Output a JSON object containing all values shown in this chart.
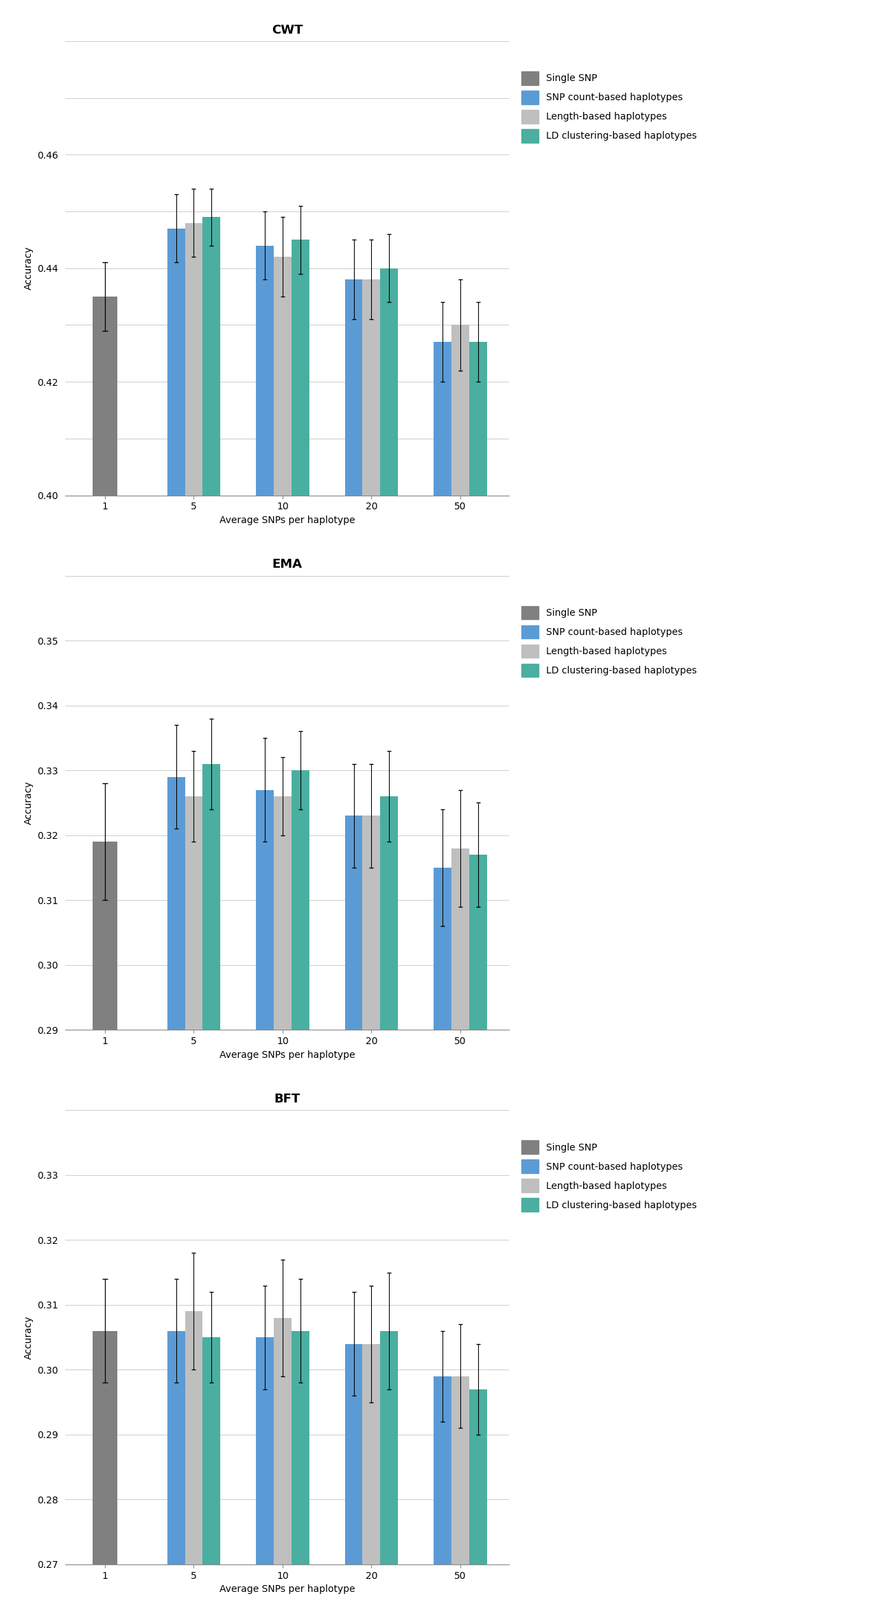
{
  "charts": [
    {
      "title": "CWT",
      "ylim": [
        0.4,
        0.48
      ],
      "yticks": [
        0.4,
        0.41,
        0.42,
        0.43,
        0.44,
        0.45,
        0.46,
        0.47,
        0.48
      ],
      "ytick_labels": [
        "0.40",
        "",
        "0.42",
        "",
        "0.44",
        "",
        "0.46",
        "",
        ""
      ],
      "values": {
        "single_snp": [
          0.435,
          null,
          null,
          null,
          null
        ],
        "snp_count": [
          null,
          0.447,
          0.444,
          0.438,
          0.427
        ],
        "length": [
          null,
          0.448,
          0.442,
          0.438,
          0.43
        ],
        "ld_cluster": [
          null,
          0.449,
          0.445,
          0.44,
          0.427
        ]
      },
      "errors": {
        "single_snp": [
          0.006,
          null,
          null,
          null,
          null
        ],
        "snp_count": [
          null,
          0.006,
          0.006,
          0.007,
          0.007
        ],
        "length": [
          null,
          0.006,
          0.007,
          0.007,
          0.008
        ],
        "ld_cluster": [
          null,
          0.005,
          0.006,
          0.006,
          0.007
        ]
      }
    },
    {
      "title": "EMA",
      "ylim": [
        0.29,
        0.36
      ],
      "yticks": [
        0.29,
        0.3,
        0.31,
        0.32,
        0.33,
        0.34,
        0.35,
        0.36
      ],
      "ytick_labels": [
        "0.29",
        "0.30",
        "0.31",
        "0.32",
        "0.33",
        "0.34",
        "0.35",
        ""
      ],
      "values": {
        "single_snp": [
          0.319,
          null,
          null,
          null,
          null
        ],
        "snp_count": [
          null,
          0.329,
          0.327,
          0.323,
          0.315
        ],
        "length": [
          null,
          0.326,
          0.326,
          0.323,
          0.318
        ],
        "ld_cluster": [
          null,
          0.331,
          0.33,
          0.326,
          0.317
        ]
      },
      "errors": {
        "single_snp": [
          0.009,
          null,
          null,
          null,
          null
        ],
        "snp_count": [
          null,
          0.008,
          0.008,
          0.008,
          0.009
        ],
        "length": [
          null,
          0.007,
          0.006,
          0.008,
          0.009
        ],
        "ld_cluster": [
          null,
          0.007,
          0.006,
          0.007,
          0.008
        ]
      }
    },
    {
      "title": "BFT",
      "ylim": [
        0.27,
        0.34
      ],
      "yticks": [
        0.27,
        0.28,
        0.29,
        0.3,
        0.31,
        0.32,
        0.33,
        0.34
      ],
      "ytick_labels": [
        "0.27",
        "0.28",
        "0.29",
        "0.30",
        "0.31",
        "0.32",
        "0.33",
        ""
      ],
      "values": {
        "single_snp": [
          0.306,
          null,
          null,
          null,
          null
        ],
        "snp_count": [
          null,
          0.306,
          0.305,
          0.304,
          0.299
        ],
        "length": [
          null,
          0.309,
          0.308,
          0.304,
          0.299
        ],
        "ld_cluster": [
          null,
          0.305,
          0.306,
          0.306,
          0.297
        ]
      },
      "errors": {
        "single_snp": [
          0.008,
          null,
          null,
          null,
          null
        ],
        "snp_count": [
          null,
          0.008,
          0.008,
          0.008,
          0.007
        ],
        "length": [
          null,
          0.009,
          0.009,
          0.009,
          0.008
        ],
        "ld_cluster": [
          null,
          0.007,
          0.008,
          0.009,
          0.007
        ]
      }
    }
  ],
  "colors": {
    "single_snp": "#808080",
    "snp_count": "#5B9BD5",
    "length": "#BFBFBF",
    "ld_cluster": "#4AAFA0"
  },
  "legend_labels": [
    "Single SNP",
    "SNP count-based haplotypes",
    "Length-based haplotypes",
    "LD clustering-based haplotypes"
  ],
  "legend_keys": [
    "single_snp",
    "snp_count",
    "length",
    "ld_cluster"
  ],
  "x_labels": [
    "1",
    "5",
    "10",
    "20",
    "50"
  ],
  "xlabel": "Average SNPs per haplotype",
  "ylabel": "Accuracy",
  "bar_width": 0.2,
  "background_color": "#ffffff",
  "title_fontsize": 13,
  "axis_fontsize": 10,
  "tick_fontsize": 10,
  "legend_fontsize": 10
}
